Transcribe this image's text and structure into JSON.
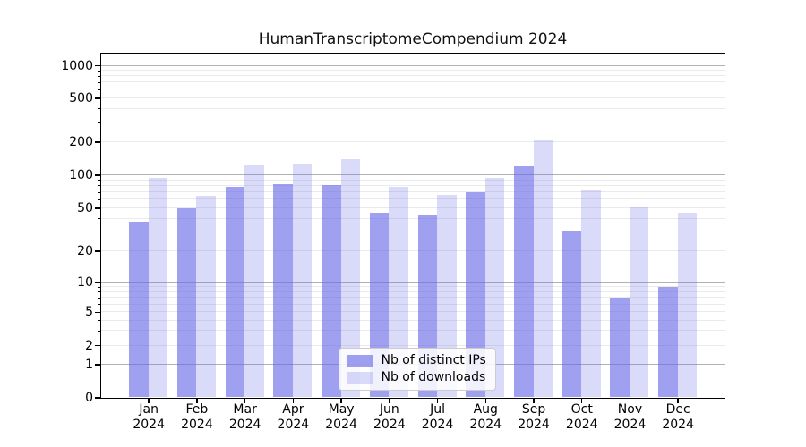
{
  "figure": {
    "background": "#ffffff"
  },
  "chart_data": {
    "type": "bar",
    "title": "HumanTranscriptomeCompendium 2024",
    "categories": [
      "Jan",
      "Feb",
      "Mar",
      "Apr",
      "May",
      "Jun",
      "Jul",
      "Aug",
      "Sep",
      "Oct",
      "Nov",
      "Dec"
    ],
    "category_year": "2024",
    "series": [
      {
        "name": "Nb of distinct IPs",
        "color": "rgba(102,102,230,0.62)",
        "values": [
          37,
          50,
          78,
          82,
          81,
          45,
          43,
          70,
          120,
          31,
          7,
          9
        ]
      },
      {
        "name": "Nb of downloads",
        "color": "rgba(102,102,230,0.24)",
        "values": [
          93,
          65,
          122,
          125,
          138,
          77,
          66,
          94,
          205,
          74,
          51,
          45
        ]
      }
    ],
    "xlabel": "",
    "ylabel": "",
    "y_axis": {
      "scale": "symlog",
      "tick_values": [
        0,
        1,
        2,
        5,
        10,
        20,
        50,
        100,
        200,
        500,
        1000
      ],
      "tick_labels": [
        "0",
        "1",
        "2",
        "5",
        "10",
        "20",
        "50",
        "100",
        "200",
        "500",
        "1000"
      ],
      "major_gridlines": [
        1,
        10,
        100,
        1000
      ],
      "minor_gridlines": [
        2,
        3,
        4,
        5,
        6,
        7,
        8,
        9,
        20,
        30,
        40,
        50,
        60,
        70,
        80,
        90,
        200,
        300,
        400,
        500,
        600,
        700,
        800,
        900
      ],
      "ylim": [
        0,
        1270
      ],
      "scale_points": [
        [
          0,
          0
        ],
        [
          1,
          0.0961
        ],
        [
          2,
          0.1519
        ],
        [
          5,
          0.2481
        ],
        [
          10,
          0.3351
        ],
        [
          20,
          0.426
        ],
        [
          50,
          0.5506
        ],
        [
          100,
          0.6468
        ],
        [
          200,
          0.7429
        ],
        [
          500,
          0.8701
        ],
        [
          1000,
          0.9649
        ]
      ]
    },
    "grid": true,
    "legend_position": "inside lower center"
  },
  "colors": {
    "grid_major": "#b2b2b2",
    "grid_minor": "#eaeaea",
    "spine": "#000000",
    "tick_label": "#000000"
  }
}
